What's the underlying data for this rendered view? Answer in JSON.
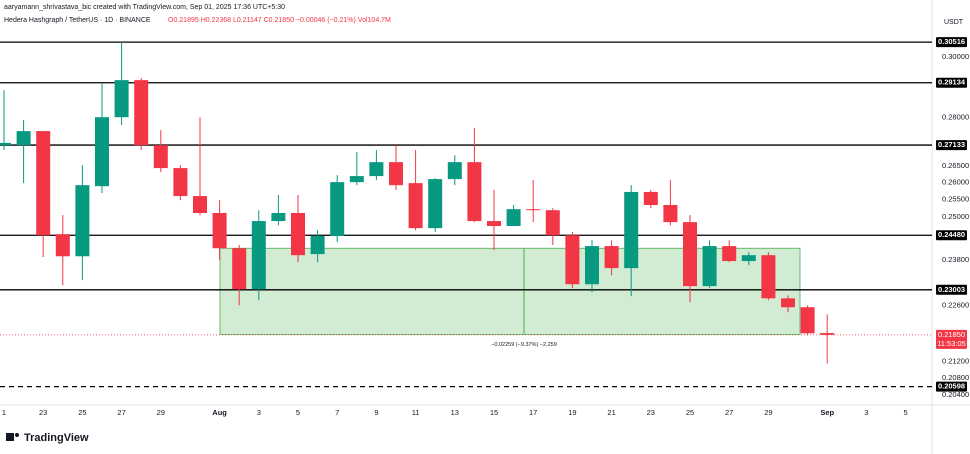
{
  "header": {
    "credit": "aaryamann_shrivastava_bic created with TradingView.com, Sep 01, 2025 17:36 UTC+5:30",
    "symbol": "Hedera Hashgraph / TetherUS · 1D · BINANCE",
    "quote": "O0.21895 H0.22368 L0.21147 C0.21850 −0.00046 (−0.21%) Vol104.7M",
    "currency": "USDT"
  },
  "footer": {
    "logo": "TradingView"
  },
  "chart_data": {
    "type": "candlestick",
    "categories": [
      "1",
      null,
      "23",
      null,
      "25",
      null,
      "27",
      null,
      "29",
      null,
      null,
      "Aug",
      null,
      "3",
      null,
      "5",
      null,
      "7",
      null,
      "9",
      null,
      "11",
      null,
      "13",
      null,
      "15",
      null,
      "17",
      null,
      "19",
      null,
      "21",
      null,
      "23",
      null,
      "25",
      null,
      "27",
      null,
      "29",
      null,
      null,
      "Sep",
      null,
      "3",
      null,
      "5"
    ],
    "open": [
      0.2713,
      0.2713,
      0.2757,
      0.2451,
      0.239,
      0.2589,
      0.2801,
      0.2922,
      0.2713,
      0.2643,
      0.256,
      0.2511,
      0.2412,
      0.2302,
      0.2488,
      0.2511,
      0.2396,
      0.2446,
      0.2601,
      0.2619,
      0.2661,
      0.2598,
      0.2468,
      0.261,
      0.2661,
      0.2488,
      0.2474,
      0.2522,
      0.2519,
      0.2448,
      0.2315,
      0.2418,
      0.2358,
      0.2572,
      0.2534,
      0.2485,
      0.231,
      0.2418,
      0.2377,
      0.2393,
      0.2278,
      0.2255,
      0.21895,
      null,
      null,
      null,
      null
    ],
    "high": [
      0.2889,
      0.2792,
      0.2757,
      0.2505,
      0.2652,
      0.2912,
      0.3052,
      0.2929,
      0.276,
      0.2652,
      0.2801,
      0.2548,
      0.2421,
      0.2519,
      0.2563,
      0.2563,
      0.2462,
      0.2622,
      0.2692,
      0.2698,
      0.2713,
      0.2698,
      0.2613,
      0.2682,
      0.2767,
      0.2578,
      0.2534,
      0.2607,
      0.2525,
      0.2457,
      0.2434,
      0.2434,
      0.2592,
      0.2578,
      0.2607,
      0.2505,
      0.2434,
      0.2434,
      0.2401,
      0.2401,
      0.2286,
      0.226,
      0.22368,
      null,
      null,
      null,
      null
    ],
    "low": [
      0.2698,
      0.2598,
      0.2388,
      0.2312,
      0.2326,
      0.2569,
      0.2776,
      0.2698,
      0.2631,
      0.2548,
      0.2505,
      0.238,
      0.226,
      0.2273,
      0.2476,
      0.2374,
      0.2374,
      0.2429,
      0.2592,
      0.2607,
      0.2578,
      0.2462,
      0.2457,
      0.2592,
      0.2485,
      0.2407,
      0.2474,
      0.2485,
      0.2421,
      0.2305,
      0.2294,
      0.2339,
      0.2284,
      0.2525,
      0.2476,
      0.2268,
      0.2305,
      0.2374,
      0.2366,
      0.2273,
      0.2242,
      0.2184,
      0.21147,
      null,
      null,
      null,
      null
    ],
    "close": [
      0.272,
      0.2757,
      0.2448,
      0.239,
      0.2592,
      0.2801,
      0.2922,
      0.2713,
      0.2643,
      0.256,
      0.2511,
      0.2412,
      0.2302,
      0.2488,
      0.2511,
      0.2393,
      0.2446,
      0.2601,
      0.2619,
      0.2661,
      0.2592,
      0.2468,
      0.261,
      0.2661,
      0.2488,
      0.2474,
      0.2522,
      0.2519,
      0.2448,
      0.2315,
      0.2418,
      0.2358,
      0.2572,
      0.2534,
      0.2485,
      0.231,
      0.2418,
      0.2377,
      0.2393,
      0.2278,
      0.2255,
      0.2189,
      0.2185,
      null,
      null,
      null,
      null
    ],
    "colors": {
      "up": "#089981",
      "down": "#f23645"
    },
    "ylim": [
      0.2017,
      0.3094
    ],
    "log_scale": true,
    "grid": false,
    "yticks": [
      {
        "value": 0.3,
        "label": "0.30000"
      },
      {
        "value": 0.28,
        "label": "0.28000"
      },
      {
        "value": 0.265,
        "label": "0.26500"
      },
      {
        "value": 0.26,
        "label": "0.26000"
      },
      {
        "value": 0.255,
        "label": "0.25500"
      },
      {
        "value": 0.25,
        "label": "0.25000"
      },
      {
        "value": 0.238,
        "label": "0.23800"
      },
      {
        "value": 0.226,
        "label": "0.22600"
      },
      {
        "value": 0.212,
        "label": "0.21200"
      },
      {
        "value": 0.208,
        "label": "0.20800"
      },
      {
        "value": 0.204,
        "label": "0.20400"
      }
    ],
    "hlines": [
      {
        "value": 0.30516,
        "label": "0.30516"
      },
      {
        "value": 0.29134,
        "label": "0.29134"
      },
      {
        "value": 0.27133,
        "label": "0.27133"
      },
      {
        "value": 0.2448,
        "label": "0.24480"
      },
      {
        "value": 0.23003,
        "label": "0.23003"
      }
    ],
    "dashed_line": {
      "value": 0.20598,
      "label": "0.20598"
    },
    "last_price": {
      "value": 0.2185,
      "label": "0.21850",
      "countdown": "11:53:05",
      "color": "#f23645"
    },
    "measure": {
      "high": 0.2412,
      "low": 0.21861,
      "label": "−0.02259 (−9.37%) −2,259",
      "color": "#4caf50"
    }
  }
}
